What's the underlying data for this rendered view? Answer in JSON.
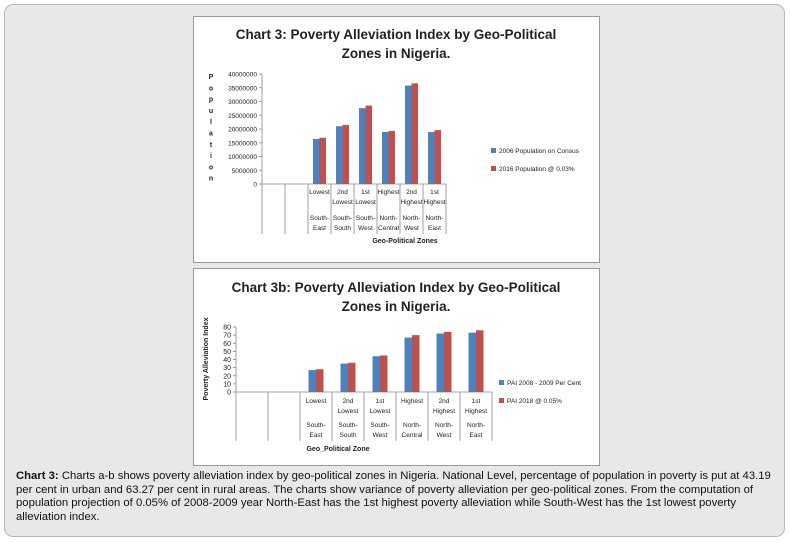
{
  "chart_data": [
    {
      "type": "bar",
      "title_lines": [
        "Chart 3: Poverty Alleviation Index by Geo-Political",
        "Zones in Nigeria."
      ],
      "ylabel_letters": [
        "P",
        "o",
        "p",
        "u",
        "l",
        "a",
        "t",
        "i",
        "o",
        "n"
      ],
      "xlabel": "Geo-Political Zones",
      "yticks": [
        "40000000",
        "35000000",
        "30000000",
        "25000000",
        "20000000",
        "15000000",
        "10000000",
        "5000000",
        "0"
      ],
      "ylim": [
        0,
        40000000
      ],
      "categories": [
        {
          "rank": [
            "Lowest"
          ],
          "zone": [
            "South-",
            "East"
          ]
        },
        {
          "rank": [
            "2nd",
            "Lowest"
          ],
          "zone": [
            "South-",
            "South"
          ]
        },
        {
          "rank": [
            "1st",
            "Lowest"
          ],
          "zone": [
            "South-",
            "West"
          ]
        },
        {
          "rank": [
            "Highest"
          ],
          "zone": [
            "North-",
            "Central"
          ]
        },
        {
          "rank": [
            "2nd",
            "Highest"
          ],
          "zone": [
            "North-",
            "West"
          ]
        },
        {
          "rank": [
            "1st",
            "Highest"
          ],
          "zone": [
            "North-",
            "East"
          ]
        }
      ],
      "series": [
        {
          "name": "2006 Population on Consus",
          "color": "#4f81bd",
          "values": [
            16400000,
            21000000,
            27600000,
            18900000,
            35800000,
            18900000
          ]
        },
        {
          "name": "2016 Population @ 0.03%",
          "color": "#c0504d",
          "values": [
            16800000,
            21500000,
            28500000,
            19300000,
            36600000,
            19600000
          ]
        }
      ]
    },
    {
      "type": "bar",
      "title_lines": [
        "Chart 3b: Poverty Alleviation Index by Geo-Political",
        "Zones in Nigeria."
      ],
      "ylabel": "Poverty Alleviation Index",
      "xlabel": "Geo_Political Zone",
      "yticks": [
        "80",
        "70",
        "60",
        "50",
        "40",
        "30",
        "20",
        "10",
        "0"
      ],
      "ylim": [
        0,
        80
      ],
      "categories": [
        {
          "rank": [
            "Lowest"
          ],
          "zone": [
            "South-",
            "East"
          ]
        },
        {
          "rank": [
            "2nd",
            "Lowest"
          ],
          "zone": [
            "South-",
            "South"
          ]
        },
        {
          "rank": [
            "1st",
            "Lowest"
          ],
          "zone": [
            "South-",
            "West"
          ]
        },
        {
          "rank": [
            "Highest"
          ],
          "zone": [
            "North-",
            "Central"
          ]
        },
        {
          "rank": [
            "2nd",
            "Highest"
          ],
          "zone": [
            "North-",
            "West"
          ]
        },
        {
          "rank": [
            "1st",
            "Highest"
          ],
          "zone": [
            "North-",
            "East"
          ]
        }
      ],
      "series": [
        {
          "name": "PAI 2008 - 2009 Per Cent",
          "color": "#4f81bd",
          "values": [
            27,
            35,
            44,
            67,
            72,
            73
          ]
        },
        {
          "name": "PAI 2018 @ 0.05%",
          "color": "#c0504d",
          "values": [
            28,
            36,
            45,
            70,
            74,
            76
          ]
        }
      ]
    }
  ],
  "caption": {
    "label": "Chart 3:",
    "text": " Charts a-b shows poverty alleviation index by geo-political zones in Nigeria.  National Level, percentage of population in poverty is put at 43.19 per cent in urban and 63.27 per cent in rural areas. The charts show variance of poverty alleviation per geo-political zones. From the computation of population projection of 0.05% of 2008-2009 year North-East has the 1st highest poverty alleviation while South-West has the 1st lowest poverty alleviation index."
  }
}
